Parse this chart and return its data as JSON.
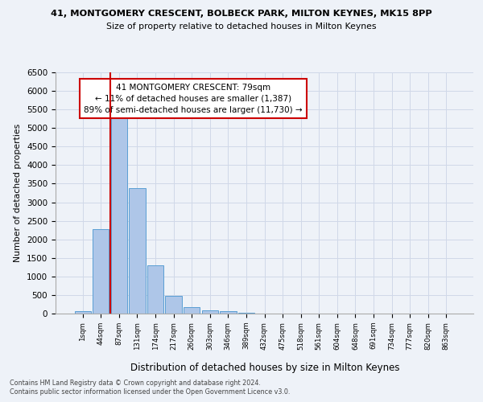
{
  "title1": "41, MONTGOMERY CRESCENT, BOLBECK PARK, MILTON KEYNES, MK15 8PP",
  "title2": "Size of property relative to detached houses in Milton Keynes",
  "xlabel": "Distribution of detached houses by size in Milton Keynes",
  "ylabel": "Number of detached properties",
  "footer1": "Contains HM Land Registry data © Crown copyright and database right 2024.",
  "footer2": "Contains public sector information licensed under the Open Government Licence v3.0.",
  "annotation_title": "41 MONTGOMERY CRESCENT: 79sqm",
  "annotation_line1": "← 11% of detached houses are smaller (1,387)",
  "annotation_line2": "89% of semi-detached houses are larger (11,730) →",
  "bar_color": "#aec6e8",
  "bar_edge_color": "#5a9fd4",
  "grid_color": "#d0d8e8",
  "annotation_box_color": "#ffffff",
  "annotation_box_edge": "#cc0000",
  "vline_color": "#cc0000",
  "background_color": "#eef2f8",
  "categories": [
    "1sqm",
    "44sqm",
    "87sqm",
    "131sqm",
    "174sqm",
    "217sqm",
    "260sqm",
    "303sqm",
    "346sqm",
    "389sqm",
    "432sqm",
    "475sqm",
    "518sqm",
    "561sqm",
    "604sqm",
    "648sqm",
    "691sqm",
    "734sqm",
    "777sqm",
    "820sqm",
    "863sqm"
  ],
  "values": [
    75,
    2280,
    5440,
    3390,
    1310,
    480,
    170,
    90,
    65,
    25,
    10,
    5,
    2,
    1,
    0,
    0,
    0,
    0,
    0,
    0,
    0
  ],
  "ylim": [
    0,
    6500
  ],
  "yticks": [
    0,
    500,
    1000,
    1500,
    2000,
    2500,
    3000,
    3500,
    4000,
    4500,
    5000,
    5500,
    6000,
    6500
  ],
  "vline_x": 1.5
}
